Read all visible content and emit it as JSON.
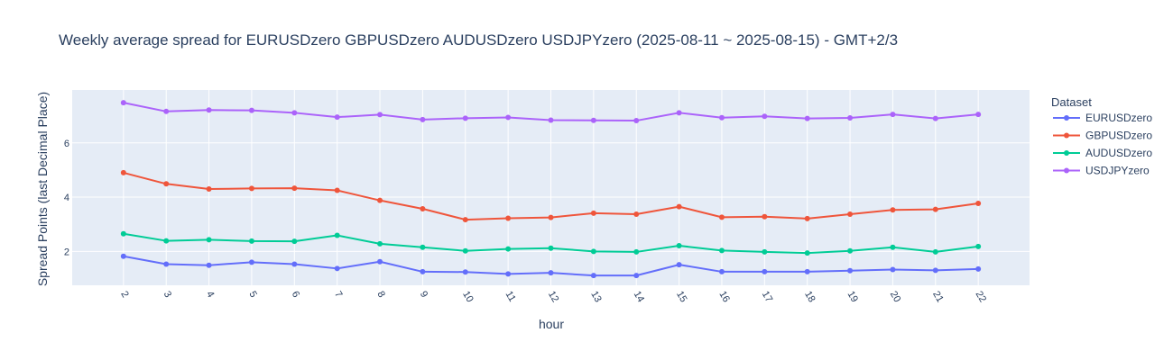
{
  "chart_data": {
    "type": "line",
    "title": "Weekly average spread for  EURUSDzero GBPUSDzero AUDUSDzero USDJPYzero (2025-08-11 ~ 2025-08-15) - GMT+2/3",
    "xlabel": "hour",
    "ylabel": "Spread Points (last Decimal Place)",
    "x": [
      2,
      3,
      4,
      5,
      6,
      7,
      8,
      9,
      10,
      11,
      12,
      13,
      14,
      15,
      16,
      17,
      18,
      19,
      20,
      21,
      22
    ],
    "x_tick_labels": [
      "2",
      "3",
      "4",
      "5",
      "6",
      "7",
      "8",
      "9",
      "10",
      "11",
      "12",
      "13",
      "14",
      "15",
      "16",
      "17",
      "18",
      "19",
      "20",
      "21",
      "22"
    ],
    "y_ticks": [
      2,
      4,
      6
    ],
    "y_tick_labels": [
      "2",
      "4",
      "6"
    ],
    "xlim": [
      0.8,
      23.2
    ],
    "ylim": [
      0.75,
      7.95
    ],
    "grid": true,
    "legend_title": "Dataset",
    "legend_position": "right",
    "background": "#e5ecf6",
    "series": [
      {
        "name": "EURUSDzero",
        "color": "#636efa",
        "values": [
          1.82,
          1.53,
          1.49,
          1.6,
          1.53,
          1.37,
          1.62,
          1.25,
          1.24,
          1.17,
          1.21,
          1.11,
          1.11,
          1.51,
          1.25,
          1.25,
          1.25,
          1.29,
          1.33,
          1.3,
          1.35
        ]
      },
      {
        "name": "GBPUSDzero",
        "color": "#ef553b",
        "values": [
          4.9,
          4.49,
          4.3,
          4.32,
          4.33,
          4.25,
          3.88,
          3.57,
          3.17,
          3.22,
          3.25,
          3.41,
          3.37,
          3.65,
          3.26,
          3.28,
          3.21,
          3.37,
          3.53,
          3.55,
          3.77
        ]
      },
      {
        "name": "AUDUSDzero",
        "color": "#00cc96",
        "values": [
          2.65,
          2.39,
          2.43,
          2.38,
          2.37,
          2.59,
          2.28,
          2.15,
          2.02,
          2.09,
          2.12,
          2.0,
          1.98,
          2.21,
          2.03,
          1.98,
          1.94,
          2.02,
          2.15,
          1.98,
          2.18
        ]
      },
      {
        "name": "USDJPYzero",
        "color": "#ab63fa",
        "values": [
          7.48,
          7.16,
          7.21,
          7.2,
          7.11,
          6.95,
          7.04,
          6.86,
          6.91,
          6.94,
          6.84,
          6.83,
          6.82,
          7.11,
          6.93,
          6.98,
          6.9,
          6.92,
          7.05,
          6.9,
          7.05
        ]
      }
    ]
  }
}
